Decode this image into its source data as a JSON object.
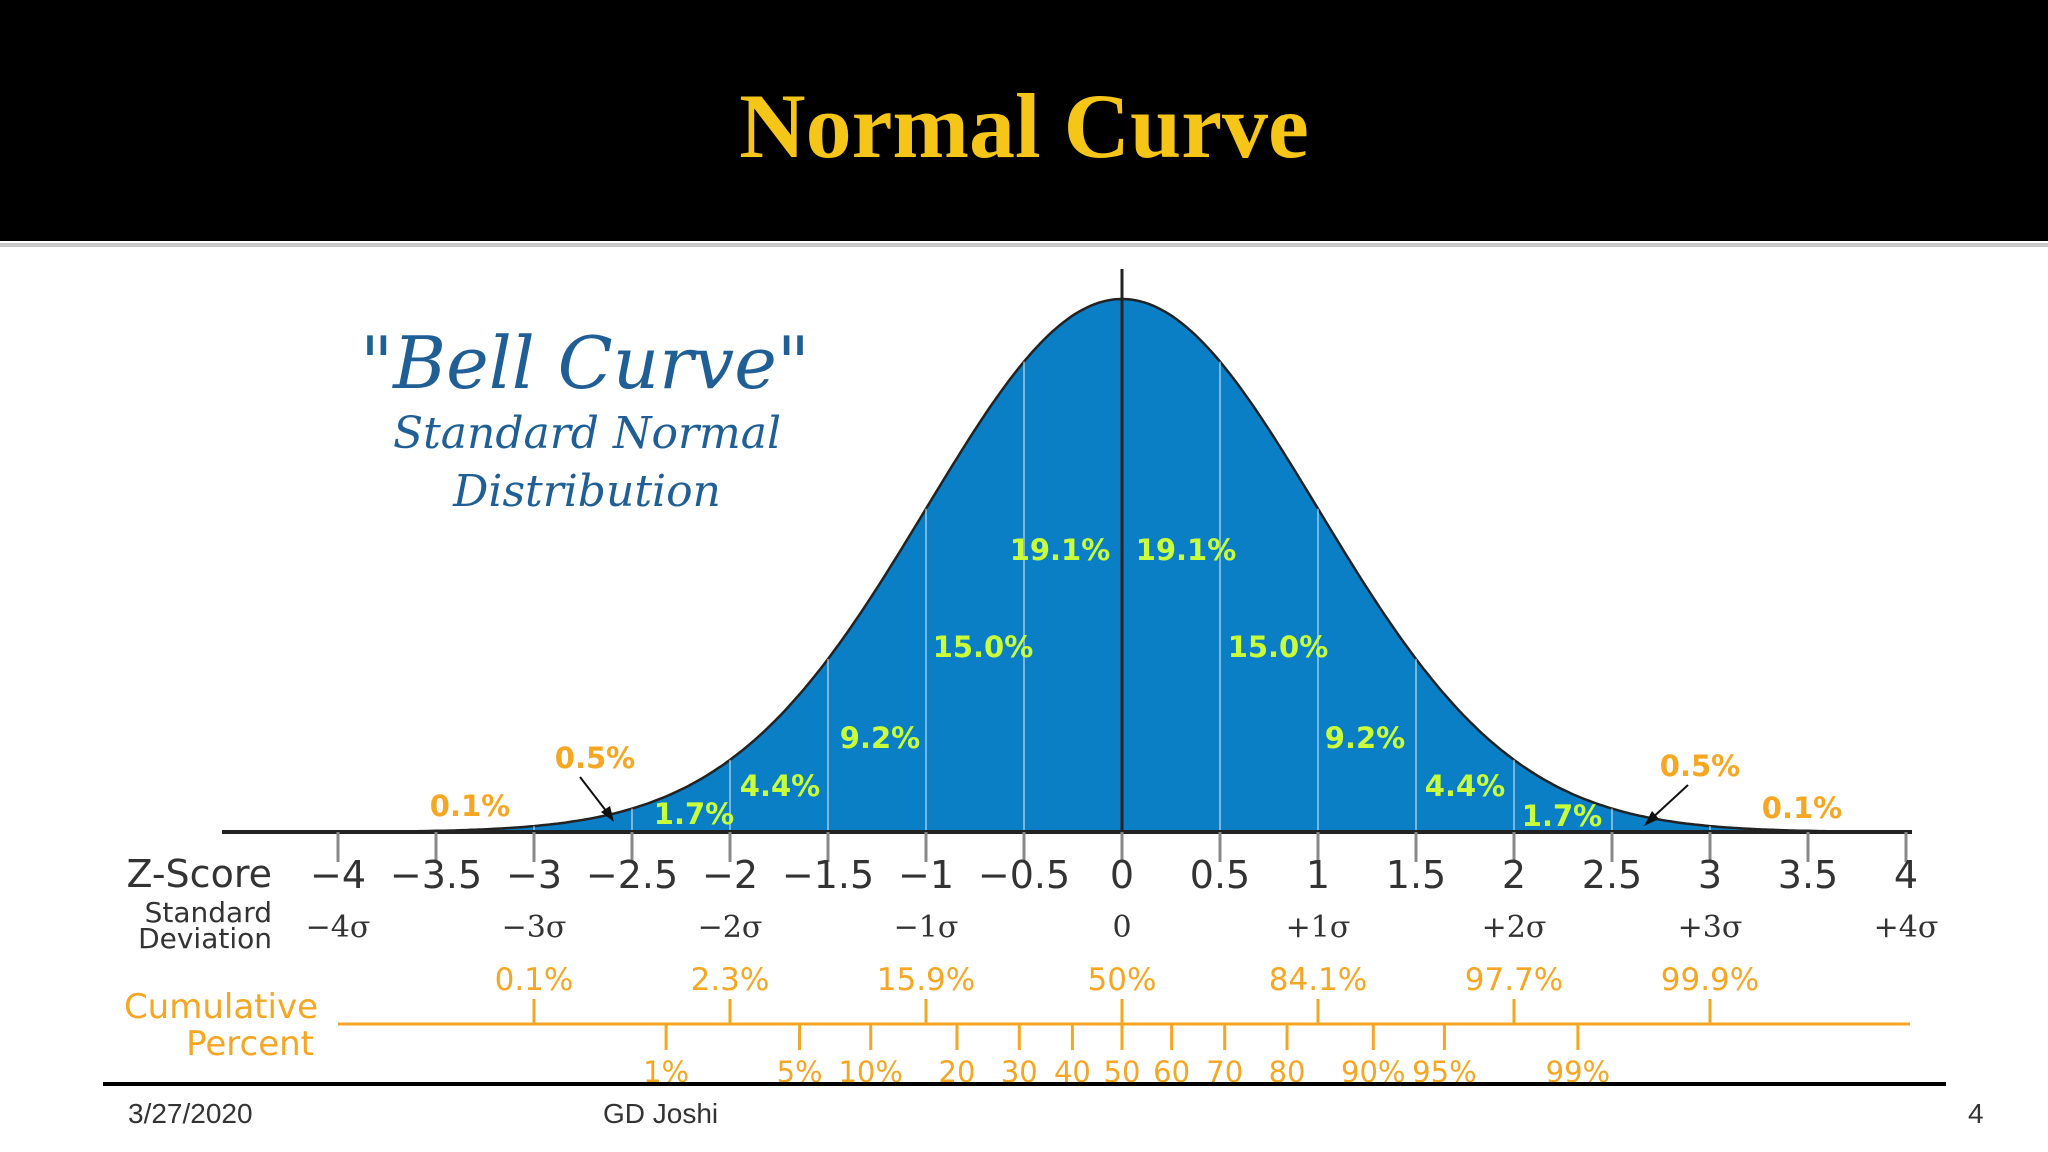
{
  "slide": {
    "title": "Normal Curve",
    "date": "3/27/2020",
    "author": "GD Joshi",
    "page": "4"
  },
  "colors": {
    "title": "#f5c518",
    "fill": "#0a7fc6",
    "curve": "#222222",
    "heading": "#1f5f96",
    "segment_label": "#c9ff3a",
    "tail_label": "#f5a623",
    "cumulative": "#f5a623",
    "axis": "#222222"
  },
  "chart_data": {
    "type": "area",
    "title": "\"Bell Curve\"",
    "subtitle": [
      "Standard Normal",
      "Distribution"
    ],
    "xlim": [
      -4,
      4
    ],
    "x_ticks": [
      -4,
      -3.5,
      -3,
      -2.5,
      -2,
      -1.5,
      -1,
      -0.5,
      0,
      0.5,
      1,
      1.5,
      2,
      2.5,
      3,
      3.5,
      4
    ],
    "rows": {
      "zscore_label": "Z-Score",
      "sd_label_line1": "Standard",
      "sd_label_line2": "Deviation",
      "cumulative_label_line1": "Cumulative",
      "cumulative_label_line2": "Percent"
    },
    "zscore_labels": [
      {
        "x": -4,
        "text": "−4"
      },
      {
        "x": -3.5,
        "text": "−3.5"
      },
      {
        "x": -3,
        "text": "−3"
      },
      {
        "x": -2.5,
        "text": "−2.5"
      },
      {
        "x": -2,
        "text": "−2"
      },
      {
        "x": -1.5,
        "text": "−1.5"
      },
      {
        "x": -1,
        "text": "−1"
      },
      {
        "x": -0.5,
        "text": "−0.5"
      },
      {
        "x": 0,
        "text": "0"
      },
      {
        "x": 0.5,
        "text": "0.5"
      },
      {
        "x": 1,
        "text": "1"
      },
      {
        "x": 1.5,
        "text": "1.5"
      },
      {
        "x": 2,
        "text": "2"
      },
      {
        "x": 2.5,
        "text": "2.5"
      },
      {
        "x": 3,
        "text": "3"
      },
      {
        "x": 3.5,
        "text": "3.5"
      },
      {
        "x": 4,
        "text": "4"
      }
    ],
    "sd_labels": [
      {
        "x": -4,
        "text": "−4σ"
      },
      {
        "x": -3,
        "text": "−3σ"
      },
      {
        "x": -2,
        "text": "−2σ"
      },
      {
        "x": -1,
        "text": "−1σ"
      },
      {
        "x": 0,
        "text": "0"
      },
      {
        "x": 1,
        "text": "+1σ"
      },
      {
        "x": 2,
        "text": "+2σ"
      },
      {
        "x": 3,
        "text": "+3σ"
      },
      {
        "x": 4,
        "text": "+4σ"
      }
    ],
    "segments": [
      {
        "from": -0.5,
        "to": 0,
        "label": "19.1%"
      },
      {
        "from": 0,
        "to": 0.5,
        "label": "19.1%"
      },
      {
        "from": -1,
        "to": -0.5,
        "label": "15.0%"
      },
      {
        "from": 0.5,
        "to": 1,
        "label": "15.0%"
      },
      {
        "from": -1.5,
        "to": -1,
        "label": "9.2%"
      },
      {
        "from": 1,
        "to": 1.5,
        "label": "9.2%"
      },
      {
        "from": -2,
        "to": -1.5,
        "label": "4.4%"
      },
      {
        "from": 1.5,
        "to": 2,
        "label": "4.4%"
      },
      {
        "from": -2.5,
        "to": -2,
        "label": "1.7%"
      },
      {
        "from": 2,
        "to": 2.5,
        "label": "1.7%"
      },
      {
        "from": -3,
        "to": -2.5,
        "label": "0.5%"
      },
      {
        "from": 2.5,
        "to": 3,
        "label": "0.5%"
      },
      {
        "from": -4,
        "to": -3,
        "label": "0.1%"
      },
      {
        "from": 3,
        "to": 4,
        "label": "0.1%"
      }
    ],
    "cumulative_upper": [
      {
        "x": -3,
        "text": "0.1%"
      },
      {
        "x": -2,
        "text": "2.3%"
      },
      {
        "x": -1,
        "text": "15.9%"
      },
      {
        "x": 0,
        "text": "50%"
      },
      {
        "x": 1,
        "text": "84.1%"
      },
      {
        "x": 2,
        "text": "97.7%"
      },
      {
        "x": 3,
        "text": "99.9%"
      }
    ],
    "cumulative_lower": [
      {
        "x": -2.326,
        "text": "1%"
      },
      {
        "x": -1.645,
        "text": "5%"
      },
      {
        "x": -1.282,
        "text": "10%"
      },
      {
        "x": -0.842,
        "text": "20"
      },
      {
        "x": -0.524,
        "text": "30"
      },
      {
        "x": -0.253,
        "text": "40"
      },
      {
        "x": 0,
        "text": "50"
      },
      {
        "x": 0.253,
        "text": "60"
      },
      {
        "x": 0.524,
        "text": "70"
      },
      {
        "x": 0.842,
        "text": "80"
      },
      {
        "x": 1.282,
        "text": "90%"
      },
      {
        "x": 1.645,
        "text": "95%"
      },
      {
        "x": 2.326,
        "text": "99%"
      }
    ]
  }
}
